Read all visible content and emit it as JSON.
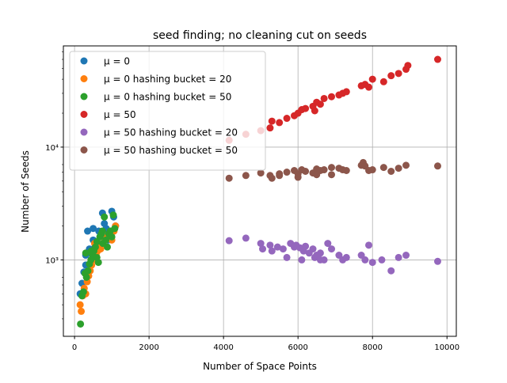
{
  "chart_data": {
    "type": "scatter",
    "title": "seed finding; no cleaning cut on seeds",
    "xlabel": "Number of Space Points",
    "ylabel": "Number of Seeds",
    "xlim": [
      -300,
      10250
    ],
    "ylim": [
      210,
      79000
    ],
    "yscale": "log",
    "grid": true,
    "legend_position": "top-left",
    "xticks": [
      0,
      2000,
      4000,
      6000,
      8000,
      10000
    ],
    "xtick_labels": [
      "0",
      "2000",
      "4000",
      "6000",
      "8000",
      "10000"
    ],
    "yticks": [
      1000,
      10000
    ],
    "ytick_labels": [
      "10³",
      "10⁴"
    ],
    "series": [
      {
        "name": "μ = 0",
        "color": "#1f77b4",
        "x": [
          150,
          200,
          250,
          300,
          350,
          400,
          450,
          500,
          550,
          600,
          650,
          700,
          750,
          800,
          850,
          900,
          950,
          1000,
          1050,
          1100,
          300,
          500,
          800,
          1000
        ],
        "y": [
          500,
          620,
          780,
          1100,
          1800,
          1250,
          1000,
          1900,
          1300,
          1200,
          1800,
          1700,
          2600,
          2100,
          1900,
          1500,
          1700,
          2700,
          2400,
          2000,
          900,
          1500,
          1600,
          1800
        ]
      },
      {
        "name": "μ = 0 hashing bucket = 20",
        "color": "#ff7f0e",
        "x": [
          150,
          180,
          220,
          260,
          300,
          340,
          380,
          420,
          460,
          500,
          540,
          580,
          620,
          660,
          700,
          760,
          820,
          880,
          940,
          1000,
          1060,
          1100
        ],
        "y": [
          400,
          350,
          480,
          560,
          500,
          640,
          720,
          800,
          900,
          1000,
          1400,
          1100,
          1200,
          1300,
          1250,
          1400,
          1500,
          1600,
          1700,
          1500,
          1800,
          2000
        ]
      },
      {
        "name": "μ = 0 hashing bucket = 50",
        "color": "#2ca02c",
        "x": [
          160,
          200,
          240,
          280,
          320,
          360,
          400,
          440,
          480,
          520,
          560,
          600,
          640,
          680,
          720,
          760,
          800,
          840,
          880,
          920,
          960,
          1000,
          1040,
          1080,
          300,
          450,
          600,
          750
        ],
        "y": [
          270,
          480,
          520,
          760,
          700,
          800,
          920,
          1000,
          1100,
          1200,
          1300,
          1050,
          950,
          1600,
          1700,
          1400,
          2400,
          1500,
          1300,
          1700,
          1800,
          1600,
          2500,
          1900,
          1150,
          1200,
          1450,
          1800
        ]
      },
      {
        "name": "μ = 50",
        "color": "#d62728",
        "x": [
          4150,
          4600,
          5000,
          5250,
          5300,
          5500,
          5700,
          5900,
          6000,
          6100,
          6200,
          6400,
          6450,
          6500,
          6600,
          6700,
          6900,
          7100,
          7200,
          7300,
          7700,
          7800,
          7900,
          8000,
          8300,
          8500,
          8700,
          8900,
          8950,
          9750
        ],
        "y": [
          11500,
          13000,
          14000,
          14800,
          17000,
          16500,
          18000,
          19000,
          20000,
          21500,
          22000,
          23000,
          21000,
          25000,
          24000,
          27000,
          28000,
          29000,
          30000,
          31000,
          35000,
          36000,
          34000,
          40000,
          38000,
          43000,
          45000,
          49000,
          53000,
          60000
        ]
      },
      {
        "name": "μ = 50 hashing bucket = 20",
        "color": "#9467bd",
        "x": [
          4150,
          4600,
          5000,
          5050,
          5250,
          5300,
          5450,
          5600,
          5800,
          5900,
          5950,
          6050,
          6150,
          6200,
          6300,
          6400,
          6450,
          6500,
          6600,
          6700,
          6800,
          6900,
          7100,
          7200,
          7300,
          7700,
          7800,
          7900,
          8000,
          8250,
          8500,
          8700,
          8900,
          9750,
          5700,
          6100,
          6600
        ],
        "y": [
          1480,
          1560,
          1400,
          1250,
          1350,
          1200,
          1300,
          1250,
          1400,
          1300,
          1350,
          1280,
          1200,
          1320,
          1150,
          1250,
          1050,
          1100,
          1150,
          1000,
          1400,
          1250,
          1100,
          1000,
          1050,
          1100,
          1000,
          1350,
          950,
          1000,
          800,
          1050,
          1100,
          970,
          1050,
          1000,
          1000
        ],
        "labels_hint": ""
      },
      {
        "name": "μ = 50 hashing bucket = 50",
        "color": "#8c564b",
        "x": [
          4150,
          4600,
          5000,
          5250,
          5300,
          5500,
          5700,
          5900,
          6000,
          6100,
          6200,
          6400,
          6500,
          6600,
          6700,
          6900,
          7100,
          7200,
          7300,
          7700,
          7750,
          7800,
          7900,
          8000,
          8300,
          8500,
          8700,
          8900,
          9750,
          5500,
          6000,
          6500,
          6900
        ],
        "y": [
          5300,
          5600,
          5900,
          5600,
          5300,
          5800,
          6000,
          6200,
          5800,
          6300,
          6100,
          5900,
          6400,
          6200,
          6300,
          6600,
          6500,
          6300,
          6200,
          6900,
          7300,
          6800,
          6200,
          6300,
          6600,
          6100,
          6500,
          6900,
          6800,
          5600,
          5400,
          5700,
          5700
        ]
      }
    ]
  }
}
